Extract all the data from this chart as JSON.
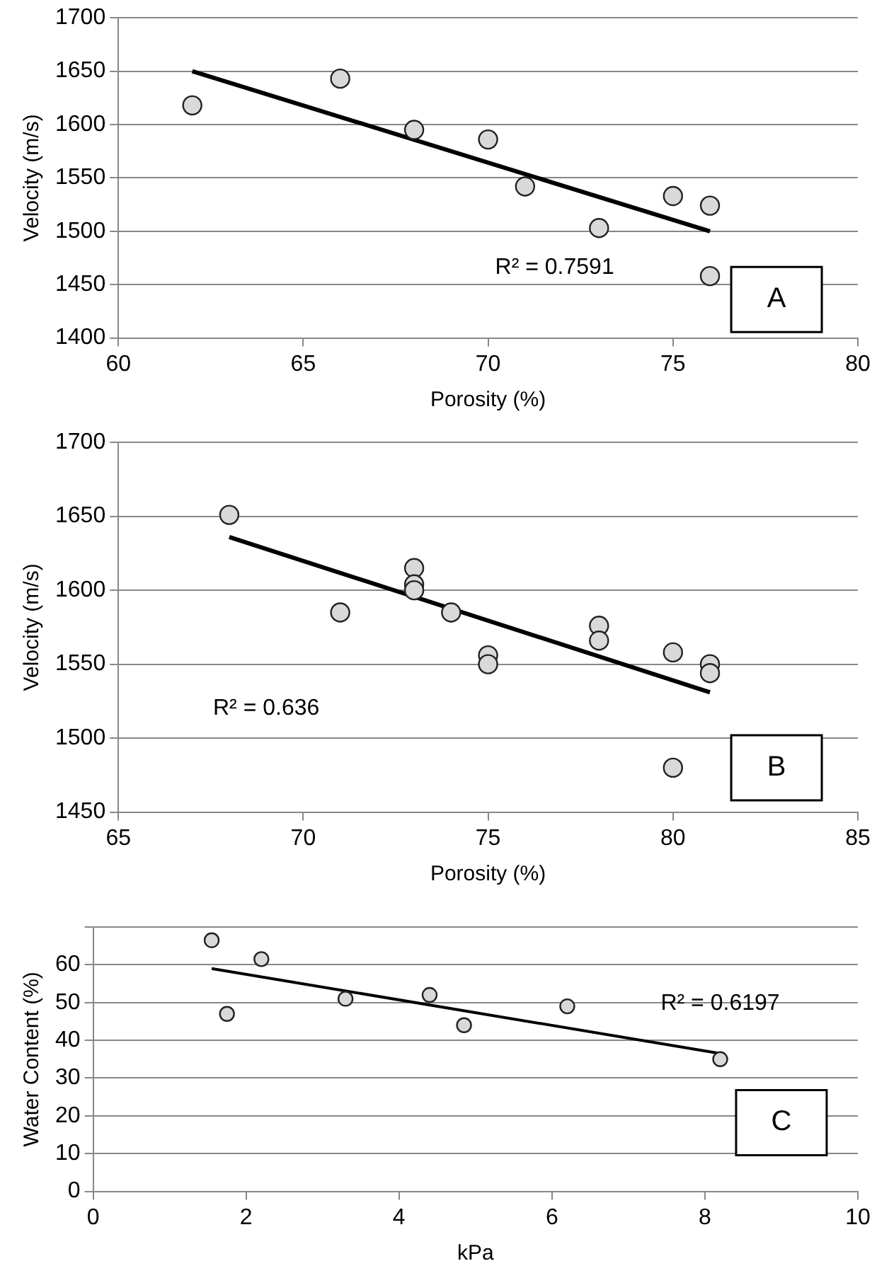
{
  "chart_data": [
    {
      "type": "scatter",
      "xlabel": "Porosity (%)",
      "ylabel": "Velocity (m/s)",
      "xlim": [
        60,
        80
      ],
      "xticks": [
        60,
        65,
        70,
        75,
        80
      ],
      "ylim": [
        1400,
        1700
      ],
      "yticks": [
        1400,
        1450,
        1500,
        1550,
        1600,
        1650,
        1700
      ],
      "grid": "y",
      "legend": false,
      "series": [
        {
          "color": "#d9d9d9",
          "marker": "circle",
          "x": [
            62,
            66,
            68,
            70,
            71,
            73,
            75,
            76,
            76
          ],
          "values": [
            1618,
            1643,
            1595,
            1586,
            1542,
            1503,
            1533,
            1524,
            1458
          ]
        },
        {
          "type": "line",
          "marker": "none",
          "color": "#000000",
          "x": [
            62,
            76
          ],
          "values": [
            1650,
            1500
          ]
        }
      ],
      "annotations": [
        "R² = 0.7591",
        "A"
      ]
    },
    {
      "type": "scatter",
      "xlabel": "Porosity (%)",
      "ylabel": "Velocity (m/s)",
      "xlim": [
        65,
        85
      ],
      "xticks": [
        65,
        70,
        75,
        80,
        85
      ],
      "ylim": [
        1450,
        1700
      ],
      "yticks": [
        1450,
        1500,
        1550,
        1600,
        1650,
        1700
      ],
      "grid": "y",
      "legend": false,
      "series": [
        {
          "color": "#d9d9d9",
          "marker": "circle",
          "x": [
            68,
            71,
            73,
            73,
            73,
            74,
            75,
            75,
            78,
            78,
            80,
            80,
            81,
            81
          ],
          "values": [
            1651,
            1585,
            1615,
            1604,
            1600,
            1585,
            1556,
            1550,
            1576,
            1566,
            1558,
            1480,
            1550,
            1544
          ]
        },
        {
          "type": "line",
          "marker": "none",
          "color": "#000000",
          "x": [
            68,
            81
          ],
          "values": [
            1636,
            1531
          ]
        }
      ],
      "annotations": [
        "R² = 0.636",
        "B"
      ]
    },
    {
      "type": "scatter",
      "xlabel": "kPa",
      "ylabel": "Water Content (%)",
      "xlim": [
        0,
        10
      ],
      "xticks": [
        0,
        2,
        4,
        6,
        8,
        10
      ],
      "ylim": [
        0,
        70
      ],
      "yticks": [
        0,
        10,
        20,
        30,
        40,
        50,
        60,
        {
          "value": 70,
          "label": null
        }
      ],
      "grid": "y",
      "legend": false,
      "series": [
        {
          "color": "#d9d9d9",
          "marker": "circle",
          "x": [
            1.55,
            1.75,
            2.2,
            3.3,
            4.4,
            4.85,
            6.2,
            8.2
          ],
          "values": [
            66.5,
            47,
            61.5,
            51,
            52,
            44,
            49,
            35
          ]
        },
        {
          "type": "line",
          "marker": "none",
          "color": "#000000",
          "x": [
            1.55,
            8.2
          ],
          "values": [
            59,
            36.5
          ]
        }
      ],
      "annotations": [
        "R² = 0.6197",
        "C"
      ]
    }
  ]
}
